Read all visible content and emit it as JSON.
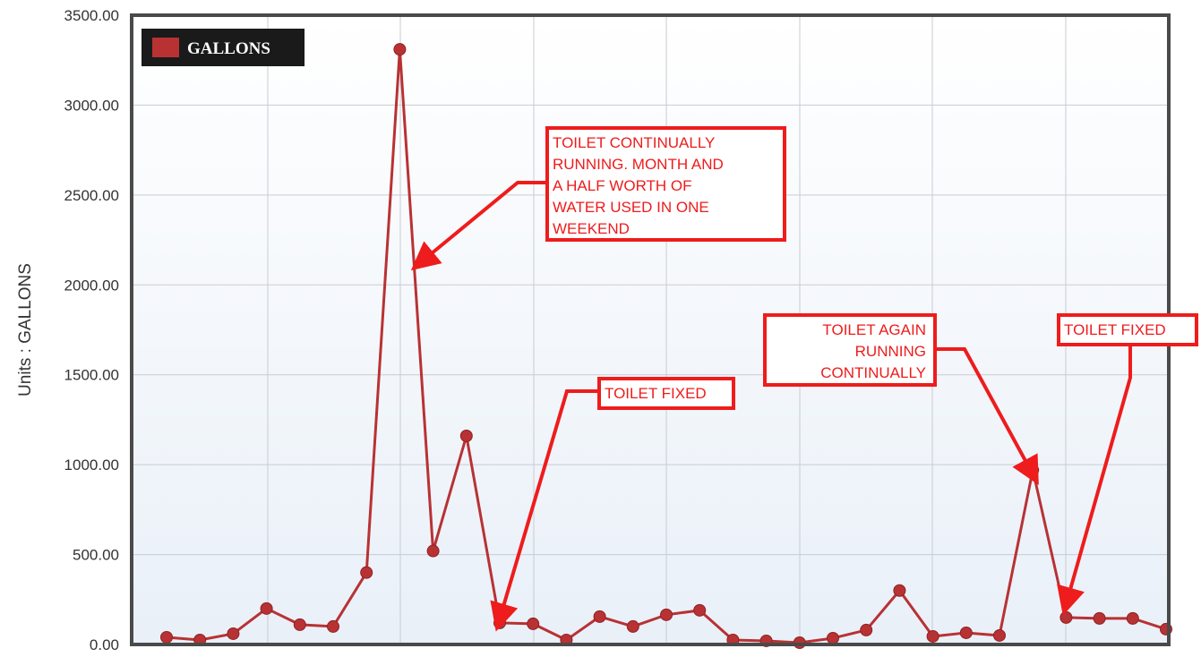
{
  "chart_data": {
    "type": "line",
    "title": "",
    "xlabel": "",
    "ylabel": "Units : GALLONS",
    "ylim": [
      0,
      3500
    ],
    "yticks": [
      "0.00",
      "500.00",
      "1000.00",
      "1500.00",
      "2000.00",
      "2500.00",
      "3000.00",
      "3500.00"
    ],
    "grid": true,
    "legend_position": "top-left",
    "series": [
      {
        "name": "GALLONS",
        "color": "#b83234",
        "values": [
          40,
          25,
          60,
          200,
          110,
          100,
          400,
          3310,
          520,
          1160,
          120,
          115,
          25,
          155,
          100,
          165,
          190,
          25,
          20,
          10,
          35,
          80,
          300,
          45,
          65,
          50,
          970,
          150,
          145,
          145,
          85
        ]
      }
    ],
    "annotations": [
      {
        "lines": [
          "TOILET CONTINUALLY",
          "RUNNING. MONTH AND",
          "A HALF WORTH OF",
          "WATER USED IN ONE",
          "WEEKEND"
        ],
        "align": "left",
        "target_index": 7,
        "target_value": 2100
      },
      {
        "lines": [
          "TOILET FIXED"
        ],
        "align": "left",
        "target_index": 10,
        "target_value": 120
      },
      {
        "lines": [
          "TOILET AGAIN",
          "RUNNING",
          "CONTINUALLY"
        ],
        "align": "right",
        "target_index": 26,
        "target_value": 970
      },
      {
        "lines": [
          "TOILET FIXED"
        ],
        "align": "left",
        "target_index": 27,
        "target_value": 170
      }
    ]
  },
  "colors": {
    "line": "#b83234",
    "marker": "#b83234",
    "annotation": "#ee1c1c",
    "legend_bg": "#1a1a1a",
    "plot_bg_top": "#ffffff",
    "plot_bg_bottom": "#e9f0f8",
    "frame": "#4a4a4a",
    "grid": "#c8ccd2"
  }
}
